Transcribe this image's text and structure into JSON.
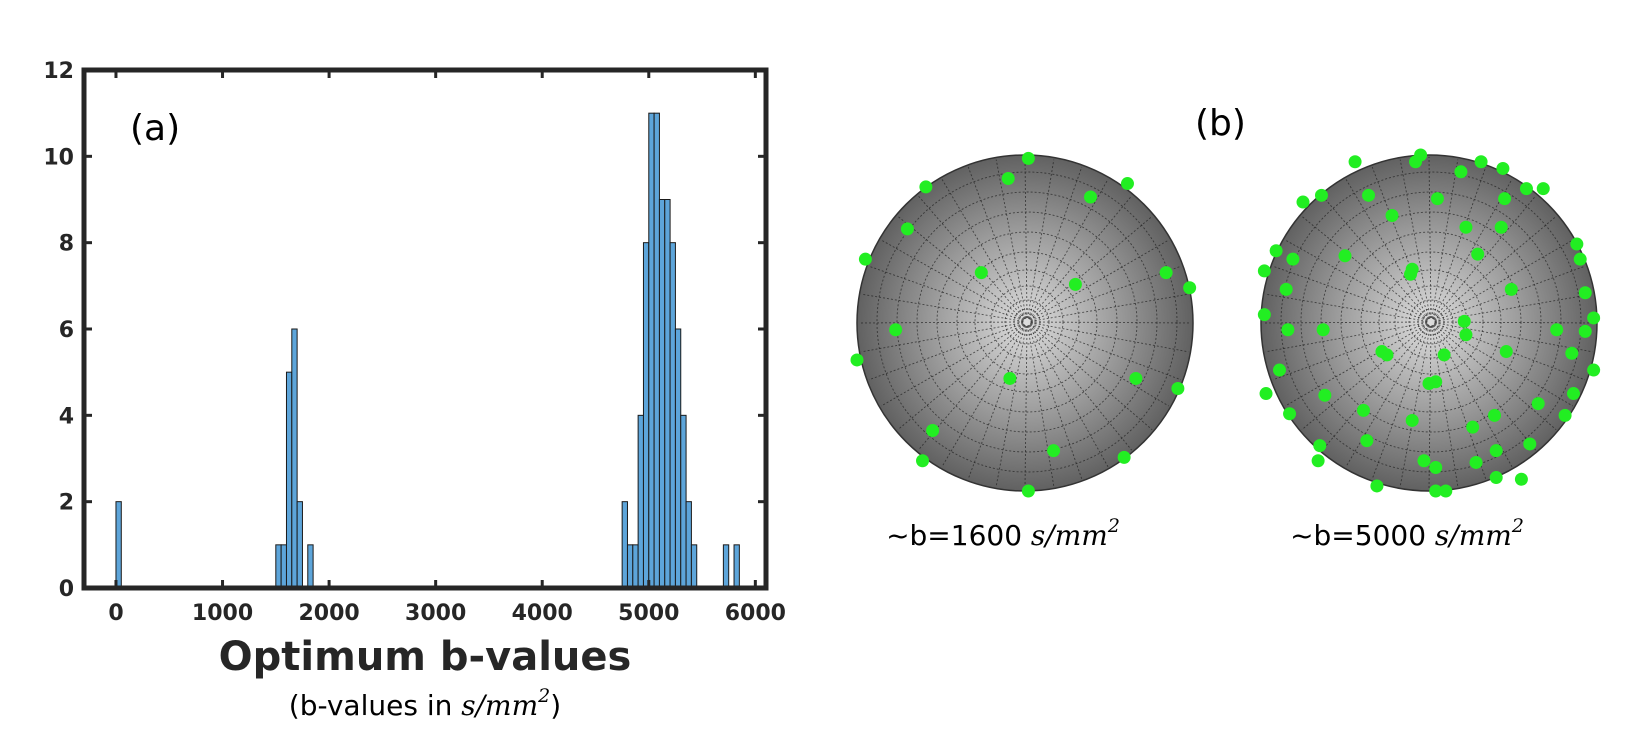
{
  "chart_data": [
    {
      "type": "bar",
      "panel_label": "(a)",
      "xlabel": "Optimum b-values",
      "subtitle_prefix": "(b-values in ",
      "subtitle_unit": "s/mm",
      "subtitle_exp": "2",
      "subtitle_suffix": ")",
      "xlim": [
        -300,
        6100
      ],
      "ylim": [
        0,
        12
      ],
      "xticks": [
        0,
        1000,
        2000,
        3000,
        4000,
        5000,
        6000
      ],
      "yticks": [
        0,
        2,
        4,
        6,
        8,
        10,
        12
      ],
      "bin_width": 50,
      "bar_color": "#5DA5DA",
      "bins": [
        {
          "x": 25,
          "y": 2
        },
        {
          "x": 1525,
          "y": 1
        },
        {
          "x": 1575,
          "y": 1
        },
        {
          "x": 1625,
          "y": 5
        },
        {
          "x": 1675,
          "y": 6
        },
        {
          "x": 1725,
          "y": 2
        },
        {
          "x": 1825,
          "y": 1
        },
        {
          "x": 4775,
          "y": 2
        },
        {
          "x": 4825,
          "y": 1
        },
        {
          "x": 4875,
          "y": 1
        },
        {
          "x": 4925,
          "y": 4
        },
        {
          "x": 4975,
          "y": 8
        },
        {
          "x": 5025,
          "y": 11
        },
        {
          "x": 5075,
          "y": 11
        },
        {
          "x": 5125,
          "y": 9
        },
        {
          "x": 5175,
          "y": 9
        },
        {
          "x": 5225,
          "y": 8
        },
        {
          "x": 5275,
          "y": 6
        },
        {
          "x": 5325,
          "y": 4
        },
        {
          "x": 5375,
          "y": 2
        },
        {
          "x": 5425,
          "y": 1
        },
        {
          "x": 5725,
          "y": 1
        },
        {
          "x": 5825,
          "y": 1
        }
      ]
    },
    {
      "type": "scatter",
      "panel_label": "(b)",
      "point_color": "#22EE22",
      "spheres": [
        {
          "label_prefix": "~b=1600 ",
          "label_unit": "s/mm",
          "label_exp": "2",
          "points": [
            [
              0.02,
              0.98
            ],
            [
              -0.59,
              0.81
            ],
            [
              -0.1,
              0.86
            ],
            [
              0.39,
              0.75
            ],
            [
              0.61,
              0.83
            ],
            [
              -0.7,
              0.56
            ],
            [
              -0.95,
              0.38
            ],
            [
              0.84,
              0.3
            ],
            [
              0.98,
              0.21
            ],
            [
              -0.26,
              0.3
            ],
            [
              0.3,
              0.23
            ],
            [
              -0.77,
              -0.04
            ],
            [
              -1.0,
              -0.22
            ],
            [
              -0.09,
              -0.33
            ],
            [
              0.66,
              -0.33
            ],
            [
              0.91,
              -0.39
            ],
            [
              -0.55,
              -0.64
            ],
            [
              -0.61,
              -0.82
            ],
            [
              0.17,
              -0.76
            ],
            [
              0.59,
              -0.8
            ],
            [
              0.02,
              -1.0
            ]
          ]
        },
        {
          "label_prefix": "~b=5000 ",
          "label_unit": "s/mm",
          "label_exp": "2",
          "points": [
            [
              -0.44,
              0.96
            ],
            [
              -0.08,
              0.96
            ],
            [
              -0.05,
              1.0
            ],
            [
              0.19,
              0.9
            ],
            [
              0.31,
              0.96
            ],
            [
              0.44,
              0.92
            ],
            [
              0.68,
              0.8
            ],
            [
              -0.64,
              0.76
            ],
            [
              -0.75,
              0.72
            ],
            [
              -0.36,
              0.76
            ],
            [
              0.05,
              0.74
            ],
            [
              0.45,
              0.74
            ],
            [
              0.58,
              0.8
            ],
            [
              -0.22,
              0.64
            ],
            [
              0.22,
              0.57
            ],
            [
              0.43,
              0.57
            ],
            [
              0.88,
              0.47
            ],
            [
              -0.91,
              0.43
            ],
            [
              -0.81,
              0.38
            ],
            [
              -0.5,
              0.4
            ],
            [
              0.29,
              0.41
            ],
            [
              0.9,
              0.38
            ],
            [
              -0.98,
              0.31
            ],
            [
              -0.85,
              0.2
            ],
            [
              0.93,
              0.18
            ],
            [
              -0.11,
              0.29
            ],
            [
              -0.1,
              0.32
            ],
            [
              0.49,
              0.2
            ],
            [
              -0.98,
              0.05
            ],
            [
              -0.84,
              -0.04
            ],
            [
              -0.63,
              -0.04
            ],
            [
              0.21,
              0.01
            ],
            [
              0.22,
              -0.07
            ],
            [
              0.76,
              -0.04
            ],
            [
              0.93,
              -0.05
            ],
            [
              0.98,
              0.03
            ],
            [
              -0.28,
              -0.17
            ],
            [
              -0.25,
              -0.19
            ],
            [
              0.09,
              -0.19
            ],
            [
              0.46,
              -0.17
            ],
            [
              0.85,
              -0.18
            ],
            [
              0.98,
              -0.28
            ],
            [
              -0.89,
              -0.28
            ],
            [
              -0.62,
              -0.43
            ],
            [
              -0.39,
              -0.52
            ],
            [
              0.04,
              -0.35
            ],
            [
              0.0,
              -0.36
            ],
            [
              0.39,
              -0.55
            ],
            [
              0.65,
              -0.48
            ],
            [
              0.81,
              -0.55
            ],
            [
              0.86,
              -0.42
            ],
            [
              -0.83,
              -0.54
            ],
            [
              -0.97,
              -0.42
            ],
            [
              -0.1,
              -0.58
            ],
            [
              0.26,
              -0.62
            ],
            [
              -0.65,
              -0.73
            ],
            [
              -0.37,
              -0.7
            ],
            [
              -0.03,
              -0.82
            ],
            [
              0.28,
              -0.83
            ],
            [
              0.4,
              -0.76
            ],
            [
              0.6,
              -0.72
            ],
            [
              -0.66,
              -0.82
            ],
            [
              -0.31,
              -0.97
            ],
            [
              0.04,
              -0.86
            ],
            [
              0.4,
              -0.92
            ],
            [
              0.55,
              -0.93
            ],
            [
              0.04,
              -1.0
            ],
            [
              0.1,
              -1.0
            ]
          ]
        }
      ]
    }
  ]
}
